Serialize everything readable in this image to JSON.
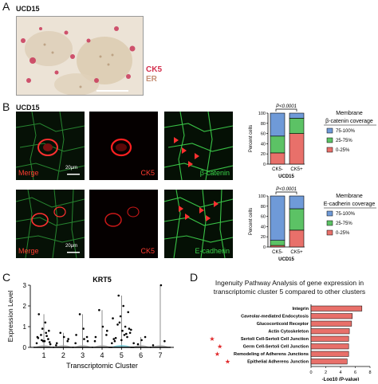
{
  "panelA": {
    "letter": "A",
    "sample": "UCD15",
    "legend": [
      {
        "label": "CK5",
        "color": "#d4304e"
      },
      {
        "label": "ER",
        "color": "#c58f74"
      }
    ]
  },
  "panelB": {
    "letter": "B",
    "sample": "UCD15",
    "row1": {
      "labels": [
        {
          "parts": [
            {
              "text": "Merge",
              "color": "#ff3b30"
            }
          ]
        },
        {
          "parts": [
            {
              "text": "CK5",
              "color": "#ff3b30"
            }
          ]
        },
        {
          "parts": [
            {
              "text": "β-catenin",
              "color": "#3ad44a"
            }
          ]
        }
      ],
      "scalebar": "20μm"
    },
    "row2": {
      "labels": [
        {
          "parts": [
            {
              "text": "Merge",
              "color": "#ff3b30"
            }
          ]
        },
        {
          "parts": [
            {
              "text": "CK5",
              "color": "#ff3b30"
            }
          ]
        },
        {
          "parts": [
            {
              "text": "E-cadherin",
              "color": "#3ad44a"
            }
          ]
        }
      ],
      "scalebar": "20μm"
    }
  },
  "panelC": {
    "letter": "C"
  },
  "panelD": {
    "letter": "D",
    "title_lines": [
      "Ingenuity Pathway Analysis of gene expression in",
      "transcriptomic cluster 5 compared to other clusters"
    ]
  },
  "chart_data": [
    {
      "id": "beta-catenin",
      "type": "bar",
      "stacked": true,
      "categories": [
        "CK5-",
        "CK5+"
      ],
      "ylabel": "Percent cells",
      "xlabel": "UCD15",
      "ylim": [
        0,
        100
      ],
      "yticks": [
        0,
        20,
        40,
        60,
        80,
        100
      ],
      "pvalue": "P<0.0001",
      "legend_title_lines": [
        "Membrane",
        "β-catenin coverage"
      ],
      "series": [
        {
          "name": "0-25%",
          "color": "#e8706a",
          "values": [
            22,
            60
          ]
        },
        {
          "name": "25-75%",
          "color": "#5cc265",
          "values": [
            33,
            30
          ]
        },
        {
          "name": "75-100%",
          "color": "#6f9ad8",
          "values": [
            45,
            10
          ]
        }
      ]
    },
    {
      "id": "e-cadherin",
      "type": "bar",
      "stacked": true,
      "categories": [
        "CK5-",
        "CK5+"
      ],
      "ylabel": "Percent cells",
      "xlabel": "UCD15",
      "ylim": [
        0,
        100
      ],
      "yticks": [
        0,
        20,
        40,
        60,
        80,
        100
      ],
      "pvalue": "P<0.0001",
      "legend_title_lines": [
        "Membrane",
        "E-cadherin coverage"
      ],
      "series": [
        {
          "name": "0-25%",
          "color": "#e8706a",
          "values": [
            3,
            33
          ]
        },
        {
          "name": "25-75%",
          "color": "#5cc265",
          "values": [
            10,
            42
          ]
        },
        {
          "name": "75-100%",
          "color": "#6f9ad8",
          "values": [
            87,
            25
          ]
        }
      ]
    },
    {
      "id": "krt5-violin",
      "type": "scatter",
      "title": "KRT5",
      "xlabel": "Transcriptomic Cluster",
      "ylabel": "Expression Level",
      "categories": [
        "1",
        "2",
        "3",
        "4",
        "5",
        "6",
        "7"
      ],
      "ylim": [
        0,
        3
      ],
      "yticks": [
        0,
        1,
        2,
        3
      ],
      "cluster_max": [
        1.6,
        0.7,
        1.6,
        1.8,
        2.5,
        0.5,
        3.0
      ],
      "points": {
        "1": [
          0.2,
          0.4,
          0.3,
          0.6,
          0.5,
          0.8,
          1.2,
          0.35,
          0.45,
          0.25,
          0.7,
          0.9,
          1.6,
          0.15,
          0.55,
          0.3
        ],
        "2": [
          0.1,
          0.3,
          0.5,
          0.7,
          0.2,
          0.4
        ],
        "3": [
          0.2,
          0.5,
          0.9,
          1.6,
          0.6,
          0.3,
          0.4
        ],
        "4": [
          0.3,
          0.6,
          1.0,
          1.8,
          0.5,
          0.8
        ],
        "5": [
          0.2,
          0.5,
          0.8,
          1.1,
          1.4,
          1.7,
          2.0,
          2.5,
          0.4,
          0.9,
          0.6,
          1.2,
          0.3,
          0.7,
          1.0,
          1.5,
          0.45,
          0.85,
          0.65,
          0.35
        ],
        "6": [
          0.2,
          0.5,
          0.35,
          0.15
        ],
        "7": [
          0.1,
          0.3,
          3.0
        ]
      }
    },
    {
      "id": "ipa-pathways",
      "type": "bar",
      "orientation": "horizontal",
      "xlabel": "-Log10 (P-value)",
      "xlim": [
        0,
        8
      ],
      "xticks": [
        0,
        2,
        4,
        6,
        8
      ],
      "categories": [
        "Integrin",
        "Caveolar-mediated Endocytosis",
        "Glucocorticoid Receptor",
        "Actin Cytoskeleton",
        "Sertoli Cell-Sertoli Cell Junction",
        "Germ Cell-Sertoli Cell Junction",
        "Remodeling of Adherens Junctions",
        "Epithelial Adherens Junction"
      ],
      "starred": [
        false,
        false,
        false,
        false,
        true,
        true,
        true,
        true
      ],
      "values": [
        6.9,
        5.6,
        5.5,
        5.2,
        5.1,
        5.1,
        5.1,
        4.9
      ],
      "bar_color": "#e8706a"
    }
  ]
}
